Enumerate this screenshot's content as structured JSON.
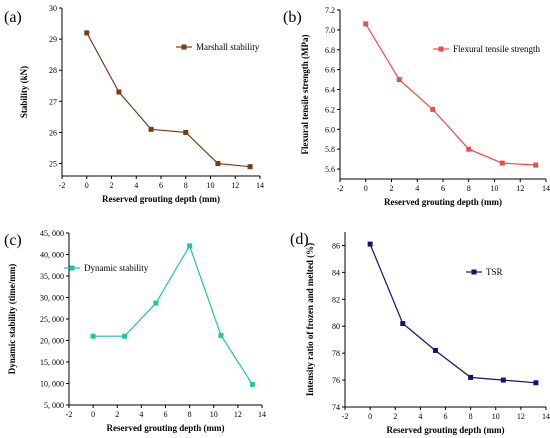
{
  "chart_data": [
    {
      "panel_label": "(a)",
      "type": "line",
      "color": "#7b3a12",
      "marker": "square",
      "xlabel": "Reserved grouting depth (mm)",
      "ylabel": "Stability (kN)",
      "xlim": [
        -2,
        14
      ],
      "ylim": [
        24.6,
        30
      ],
      "xticks": [
        -2,
        0,
        2,
        4,
        6,
        8,
        10,
        12,
        14
      ],
      "xtick_labels": [
        "-2",
        "0",
        "2",
        "4",
        "6",
        "8",
        "10",
        "12",
        "14"
      ],
      "yticks": [
        25,
        26,
        27,
        28,
        29,
        30
      ],
      "ytick_labels": [
        "25",
        "26",
        "27",
        "28",
        "29",
        "30"
      ],
      "legend_position": "top-right",
      "series": [
        {
          "name": "Marshall stability",
          "x": [
            0,
            2.6,
            5.2,
            8,
            10.6,
            13.2
          ],
          "y": [
            29.2,
            27.3,
            26.1,
            26.0,
            25.0,
            24.9
          ]
        }
      ]
    },
    {
      "panel_label": "(b)",
      "type": "line",
      "color": "#f04a4a",
      "marker": "square",
      "xlabel": "Reserved grouting depth (mm)",
      "ylabel": "Flexural tensile strength (MPa)",
      "xlim": [
        -2,
        14
      ],
      "ylim": [
        5.5,
        7.2
      ],
      "xticks": [
        -2,
        0,
        2,
        4,
        6,
        8,
        10,
        12,
        14
      ],
      "xtick_labels": [
        "-2",
        "0",
        "2",
        "4",
        "6",
        "8",
        "10",
        "12",
        "14"
      ],
      "yticks": [
        5.6,
        5.8,
        6.0,
        6.2,
        6.4,
        6.6,
        6.8,
        7.0,
        7.2
      ],
      "ytick_labels": [
        "5.6",
        "5.8",
        "6.0",
        "6.2",
        "6.4",
        "6.6",
        "6.8",
        "7.0",
        "7.2"
      ],
      "legend_position": "top-right",
      "series": [
        {
          "name": "Flexural tensile strength",
          "x": [
            0,
            2.6,
            5.2,
            8,
            10.6,
            13.2
          ],
          "y": [
            7.06,
            6.5,
            6.2,
            5.8,
            5.66,
            5.64
          ]
        }
      ]
    },
    {
      "panel_label": "(c)",
      "type": "line",
      "color": "#1fc6a4",
      "marker": "square",
      "xlabel": "Reserved grouting depth (mm)",
      "ylabel": "Dynamic stability (time/mm)",
      "xlim": [
        -2,
        14
      ],
      "ylim": [
        5000,
        45000
      ],
      "xticks": [
        -2,
        0,
        2,
        4,
        6,
        8,
        10,
        12,
        14
      ],
      "xtick_labels": [
        "-2",
        "0",
        "2",
        "4",
        "6",
        "8",
        "10",
        "12",
        "14"
      ],
      "yticks": [
        5000,
        10000,
        15000,
        20000,
        25000,
        30000,
        35000,
        40000,
        45000
      ],
      "ytick_labels": [
        "5, 000",
        "10, 000",
        "15, 000",
        "20, 000",
        "25, 000",
        "30, 000",
        "35, 000",
        "40, 000",
        "45, 000"
      ],
      "legend_position": "top-left",
      "series": [
        {
          "name": "Dynamic stability",
          "x": [
            0,
            2.6,
            5.2,
            8,
            10.6,
            13.2
          ],
          "y": [
            21000,
            21000,
            28700,
            42000,
            21200,
            9800
          ]
        }
      ]
    },
    {
      "panel_label": "(d)",
      "type": "line",
      "color": "#12127a",
      "marker": "square",
      "xlabel": "Reserved grouting depth (mm)",
      "ylabel": "Intensity ratio of frozen and melted (%)",
      "xlim": [
        -2,
        14
      ],
      "ylim": [
        74,
        87
      ],
      "xticks": [
        -2,
        0,
        2,
        4,
        6,
        8,
        10,
        12,
        14
      ],
      "xtick_labels": [
        "-2",
        "0",
        "2",
        "4",
        "6",
        "8",
        "10",
        "12",
        "14"
      ],
      "yticks": [
        74,
        76,
        78,
        80,
        82,
        84,
        86
      ],
      "ytick_labels": [
        "74",
        "76",
        "78",
        "80",
        "82",
        "84",
        "86"
      ],
      "legend_position": "top-right",
      "series": [
        {
          "name": "TSR",
          "x": [
            0,
            2.6,
            5.2,
            8,
            10.6,
            13.2
          ],
          "y": [
            86.1,
            80.2,
            78.2,
            76.2,
            76.0,
            75.8
          ]
        }
      ]
    }
  ]
}
